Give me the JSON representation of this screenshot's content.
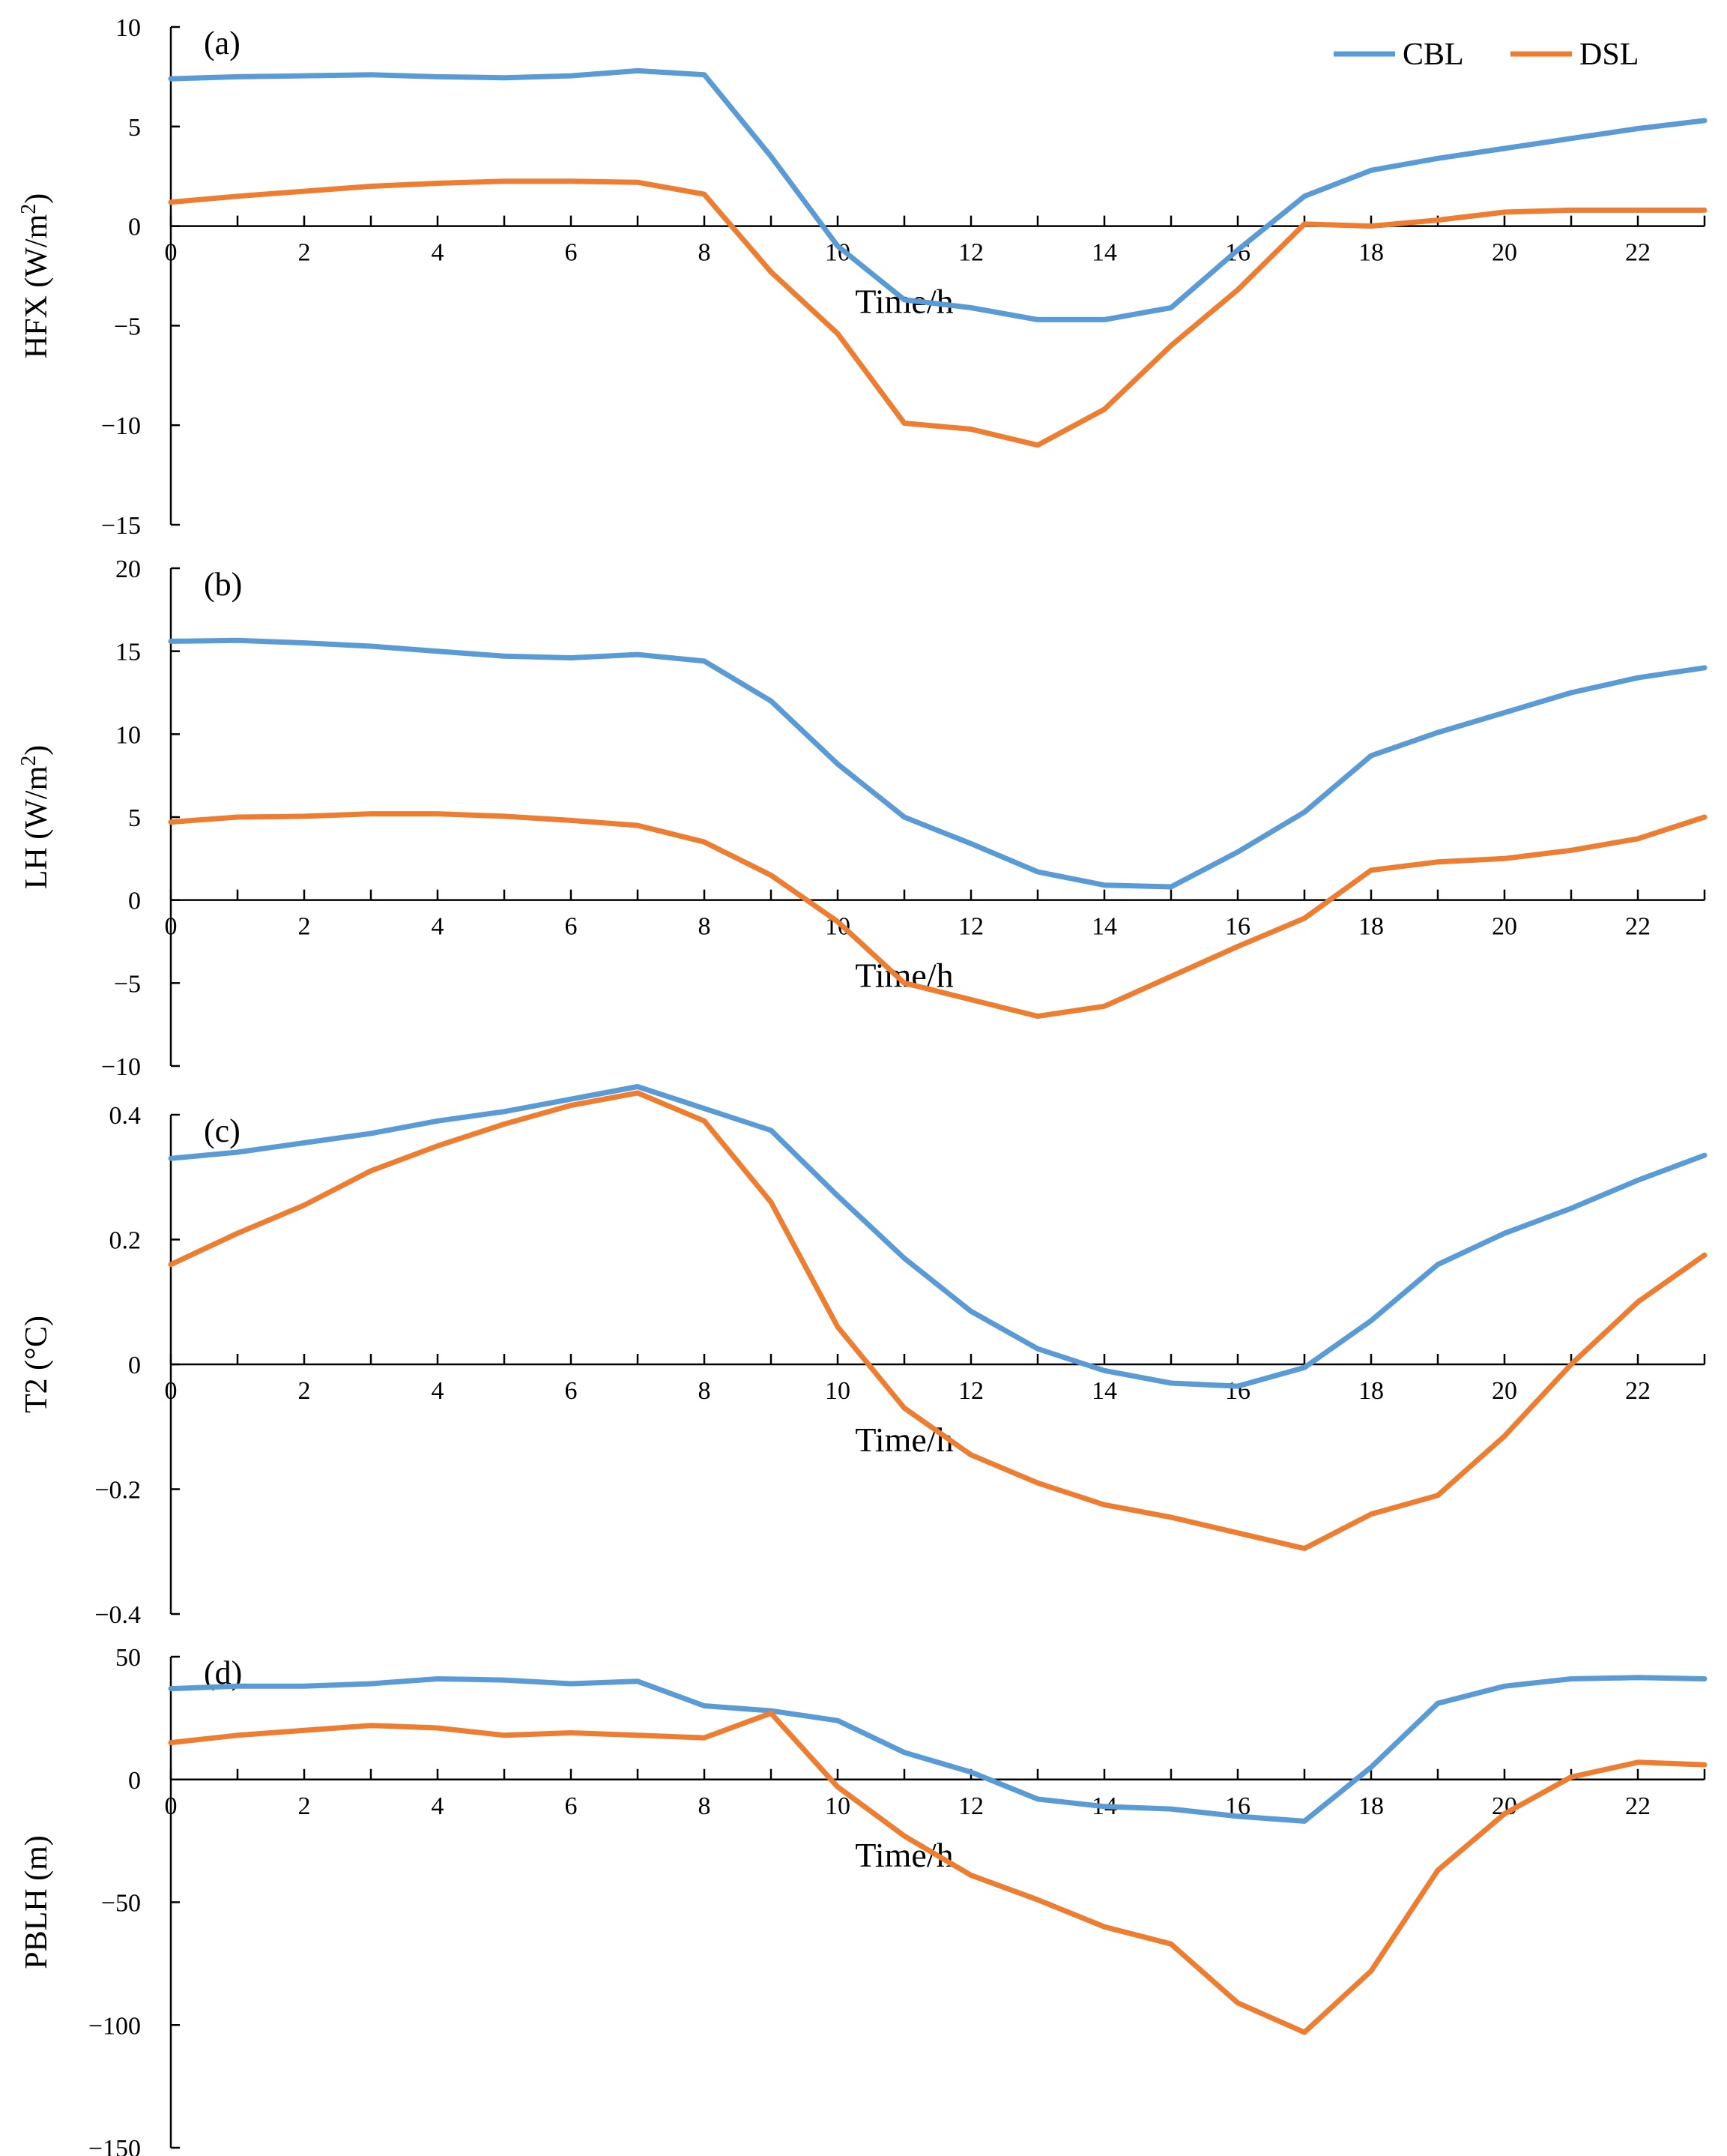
{
  "colors": {
    "CBL": "#5b9bd5",
    "DSL": "#ed7d31"
  },
  "legend": {
    "entries": [
      "CBL",
      "DSL"
    ],
    "placement": "top-right"
  },
  "chart_data": [
    {
      "type": "line",
      "panel": "(a)",
      "xlabel": "Time/h",
      "ylabel": "HFX (W/m²)",
      "ylabel_base": "HFX (W/m",
      "ylabel_sup": "2",
      "ylabel_end": ")",
      "xlim": [
        0,
        23
      ],
      "ylim": [
        -15,
        10
      ],
      "xticks": [
        "0",
        "2",
        "4",
        "6",
        "8",
        "10",
        "12",
        "14",
        "16",
        "18",
        "20",
        "22"
      ],
      "yticks": [
        "−15",
        "−10",
        "−5",
        "0",
        "5",
        "10"
      ],
      "ytick_values": [
        -15,
        -10,
        -5,
        0,
        5,
        10
      ],
      "x": [
        0,
        1,
        2,
        3,
        4,
        5,
        6,
        7,
        8,
        9,
        10,
        11,
        12,
        13,
        14,
        15,
        16,
        17,
        18,
        19,
        20,
        21,
        22,
        23
      ],
      "series": [
        {
          "name": "CBL",
          "values": [
            7.4,
            7.5,
            7.55,
            7.6,
            7.5,
            7.45,
            7.55,
            7.8,
            7.6,
            3.5,
            -1.0,
            -3.7,
            -4.1,
            -4.7,
            -4.7,
            -4.1,
            -1.2,
            1.5,
            2.8,
            3.4,
            3.9,
            4.4,
            4.9,
            5.3
          ]
        },
        {
          "name": "DSL",
          "values": [
            1.2,
            1.5,
            1.75,
            2.0,
            2.15,
            2.25,
            2.25,
            2.2,
            1.6,
            -2.3,
            -5.4,
            -9.9,
            -10.2,
            -11.0,
            -9.2,
            -6.0,
            -3.2,
            0.1,
            0.0,
            0.3,
            0.7,
            0.8,
            0.8,
            0.8
          ]
        }
      ]
    },
    {
      "type": "line",
      "panel": "(b)",
      "xlabel": "Time/h",
      "ylabel": "LH (W/m²)",
      "ylabel_base": "LH (W/m",
      "ylabel_sup": "2",
      "ylabel_end": ")",
      "xlim": [
        0,
        23
      ],
      "ylim": [
        -10,
        20
      ],
      "xticks": [
        "0",
        "2",
        "4",
        "6",
        "8",
        "10",
        "12",
        "14",
        "16",
        "18",
        "20",
        "22"
      ],
      "yticks": [
        "−10",
        "−5",
        "0",
        "5",
        "10",
        "15",
        "20"
      ],
      "ytick_values": [
        -10,
        -5,
        0,
        5,
        10,
        15,
        20
      ],
      "x": [
        0,
        1,
        2,
        3,
        4,
        5,
        6,
        7,
        8,
        9,
        10,
        11,
        12,
        13,
        14,
        15,
        16,
        17,
        18,
        19,
        20,
        21,
        22,
        23
      ],
      "series": [
        {
          "name": "CBL",
          "values": [
            15.6,
            15.65,
            15.5,
            15.3,
            15.0,
            14.7,
            14.6,
            14.8,
            14.4,
            12.0,
            8.2,
            5.0,
            3.4,
            1.7,
            0.9,
            0.8,
            2.9,
            5.3,
            8.7,
            10.1,
            11.3,
            12.5,
            13.4,
            14.0
          ]
        },
        {
          "name": "DSL",
          "values": [
            4.7,
            5.0,
            5.05,
            5.2,
            5.2,
            5.05,
            4.8,
            4.5,
            3.5,
            1.5,
            -1.3,
            -5.0,
            -6.0,
            -7.0,
            -6.4,
            -4.6,
            -2.8,
            -1.1,
            1.8,
            2.3,
            2.5,
            3.0,
            3.7,
            5.0
          ]
        }
      ]
    },
    {
      "type": "line",
      "panel": "(c)",
      "xlabel": "Time/h",
      "ylabel": "T2 (°C)",
      "xlim": [
        0,
        23
      ],
      "ylim": [
        -0.4,
        0.5
      ],
      "xticks": [
        "0",
        "2",
        "4",
        "6",
        "8",
        "10",
        "12",
        "14",
        "16",
        "18",
        "20",
        "22"
      ],
      "yticks": [
        "−0.4",
        "−0.2",
        "0",
        "0.2",
        "0.4"
      ],
      "ytick_values": [
        -0.4,
        -0.2,
        0,
        0.2,
        0.4
      ],
      "x": [
        0,
        1,
        2,
        3,
        4,
        5,
        6,
        7,
        8,
        9,
        10,
        11,
        12,
        13,
        14,
        15,
        16,
        17,
        18,
        19,
        20,
        21,
        22,
        23
      ],
      "series": [
        {
          "name": "CBL",
          "values": [
            0.33,
            0.34,
            0.355,
            0.37,
            0.39,
            0.405,
            0.425,
            0.445,
            0.41,
            0.375,
            0.27,
            0.17,
            0.085,
            0.025,
            -0.01,
            -0.03,
            -0.035,
            -0.005,
            0.07,
            0.16,
            0.21,
            0.25,
            0.295,
            0.335
          ]
        },
        {
          "name": "DSL",
          "values": [
            0.16,
            0.21,
            0.255,
            0.31,
            0.35,
            0.385,
            0.415,
            0.435,
            0.39,
            0.26,
            0.06,
            -0.07,
            -0.145,
            -0.19,
            -0.225,
            -0.245,
            -0.27,
            -0.295,
            -0.24,
            -0.21,
            -0.115,
            0.0,
            0.1,
            0.175
          ]
        }
      ]
    },
    {
      "type": "line",
      "panel": "(d)",
      "xlabel": "Time/h",
      "ylabel": "PBLH (m)",
      "xlim": [
        0,
        23
      ],
      "ylim": [
        -150,
        50
      ],
      "xticks": [
        "0",
        "2",
        "4",
        "6",
        "8",
        "10",
        "12",
        "14",
        "16",
        "18",
        "20",
        "22"
      ],
      "yticks": [
        "−150",
        "−100",
        "−50",
        "0",
        "50"
      ],
      "ytick_values": [
        -150,
        -100,
        -50,
        0,
        50
      ],
      "x": [
        0,
        1,
        2,
        3,
        4,
        5,
        6,
        7,
        8,
        9,
        10,
        11,
        12,
        13,
        14,
        15,
        16,
        17,
        18,
        19,
        20,
        21,
        22,
        23
      ],
      "series": [
        {
          "name": "CBL",
          "values": [
            37,
            38,
            38,
            39,
            41,
            40.5,
            39,
            40,
            30,
            28,
            24,
            11,
            3,
            -8,
            -11,
            -12,
            -15,
            -17,
            5,
            31,
            38,
            41,
            41.5,
            41
          ]
        },
        {
          "name": "DSL",
          "values": [
            15,
            18,
            20,
            22,
            21,
            18,
            19,
            18,
            17,
            27,
            -3,
            -23,
            -39,
            -49,
            -60,
            -67,
            -91,
            -103,
            -78,
            -37,
            -14,
            1,
            7,
            6
          ]
        }
      ]
    }
  ]
}
